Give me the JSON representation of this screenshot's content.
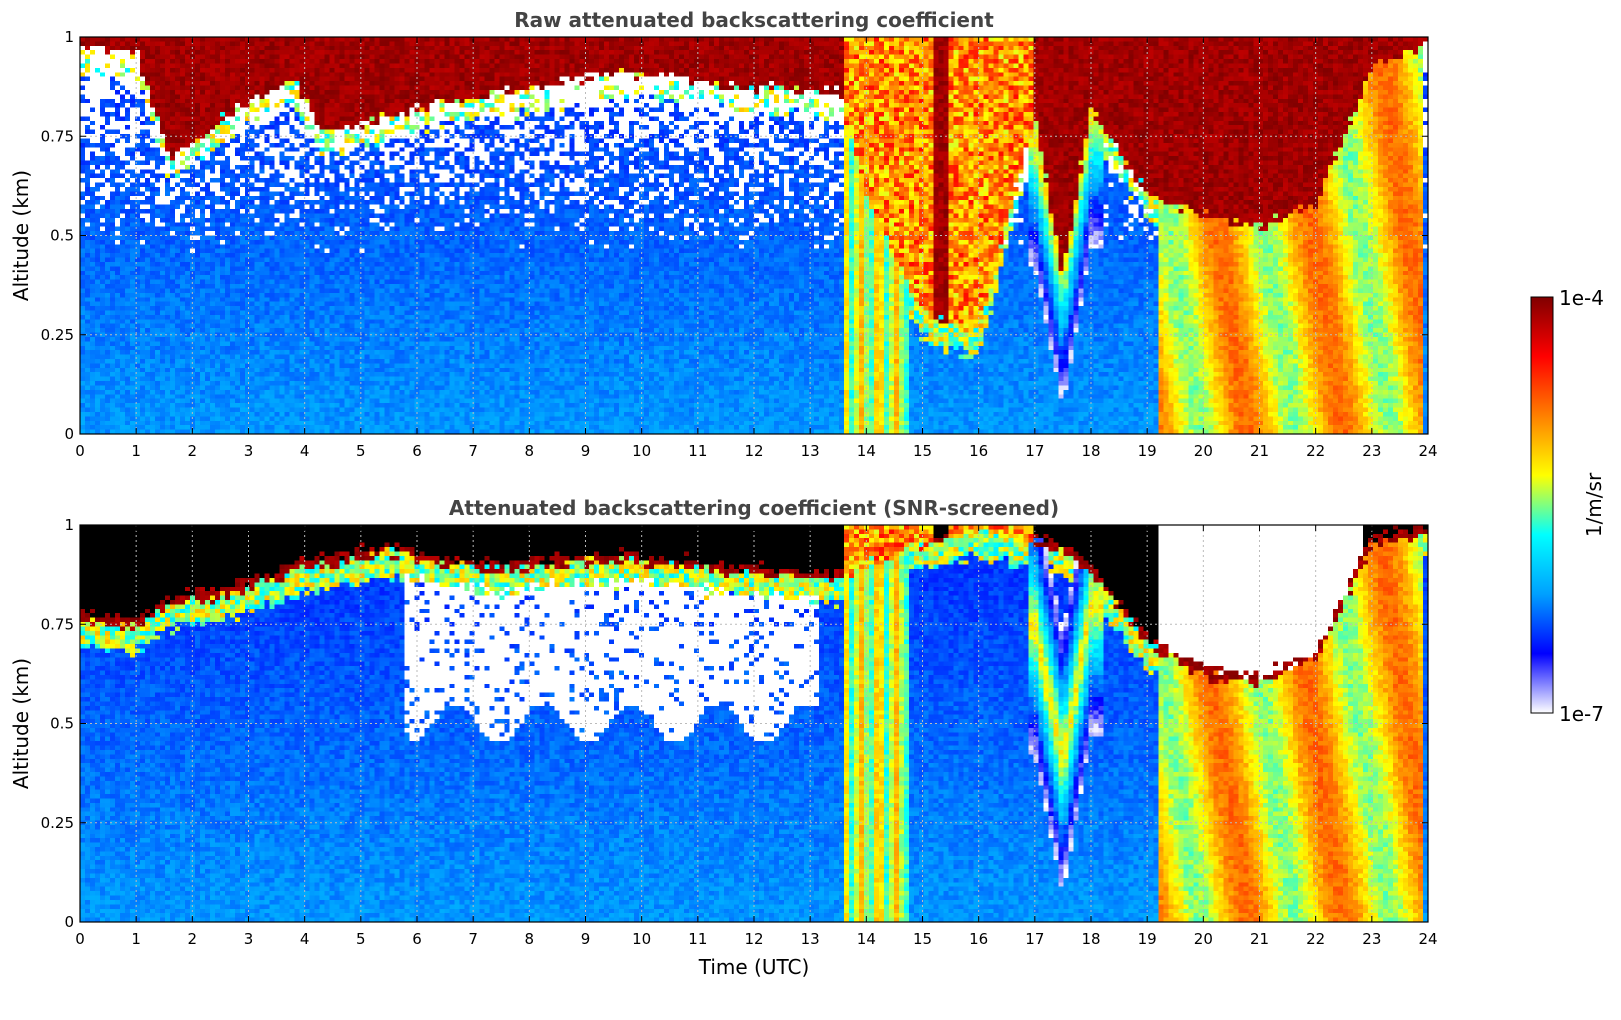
{
  "chart_data": [
    {
      "type": "heatmap",
      "title": "Raw attenuated backscattering coefficient",
      "xlabel": "",
      "ylabel": "Altitude (km)",
      "xlim": [
        0,
        24
      ],
      "ylim": [
        0,
        1
      ],
      "xticks": [
        "0",
        "1",
        "2",
        "3",
        "4",
        "5",
        "6",
        "7",
        "8",
        "9",
        "10",
        "11",
        "12",
        "13",
        "14",
        "15",
        "16",
        "17",
        "18",
        "19",
        "20",
        "21",
        "22",
        "23",
        "24"
      ],
      "yticks": [
        "0",
        "0.25",
        "0.5",
        "0.75",
        "1"
      ],
      "grid": true,
      "screened": false,
      "cloud_top_km": [
        [
          0.0,
          0.97
        ],
        [
          1.0,
          0.96
        ],
        [
          1.6,
          0.7
        ],
        [
          2.4,
          0.78
        ],
        [
          3.0,
          0.84
        ],
        [
          3.8,
          0.9
        ],
        [
          4.3,
          0.76
        ],
        [
          5.5,
          0.8
        ],
        [
          6.5,
          0.84
        ],
        [
          7.5,
          0.86
        ],
        [
          8.5,
          0.88
        ],
        [
          9.5,
          0.91
        ],
        [
          10.5,
          0.9
        ],
        [
          11.5,
          0.88
        ],
        [
          12.5,
          0.87
        ],
        [
          13.5,
          0.86
        ],
        [
          14.0,
          0.6
        ],
        [
          15.0,
          0.3
        ],
        [
          16.0,
          0.25
        ],
        [
          17.0,
          0.8
        ],
        [
          17.5,
          0.4
        ],
        [
          18.0,
          0.82
        ],
        [
          19.0,
          0.6
        ],
        [
          20.0,
          0.55
        ],
        [
          21.0,
          0.52
        ],
        [
          22.0,
          0.58
        ],
        [
          23.0,
          0.92
        ],
        [
          24.0,
          0.98
        ]
      ]
    },
    {
      "type": "heatmap",
      "title": "Attenuated backscattering coefficient (SNR-screened)",
      "xlabel": "Time (UTC)",
      "ylabel": "Altitude (km)",
      "xlim": [
        0,
        24
      ],
      "ylim": [
        0,
        1
      ],
      "xticks": [
        "0",
        "1",
        "2",
        "3",
        "4",
        "5",
        "6",
        "7",
        "8",
        "9",
        "10",
        "11",
        "12",
        "13",
        "14",
        "15",
        "16",
        "17",
        "18",
        "19",
        "20",
        "21",
        "22",
        "23",
        "24"
      ],
      "yticks": [
        "0",
        "0.25",
        "0.5",
        "0.75",
        "1"
      ],
      "grid": true,
      "screened": true,
      "cloud_top_km": [
        [
          0.0,
          0.76
        ],
        [
          1.0,
          0.74
        ],
        [
          1.6,
          0.8
        ],
        [
          2.4,
          0.82
        ],
        [
          3.0,
          0.84
        ],
        [
          3.8,
          0.88
        ],
        [
          4.3,
          0.9
        ],
        [
          5.5,
          0.93
        ],
        [
          6.5,
          0.9
        ],
        [
          7.5,
          0.88
        ],
        [
          8.5,
          0.9
        ],
        [
          9.5,
          0.91
        ],
        [
          10.5,
          0.9
        ],
        [
          11.5,
          0.88
        ],
        [
          12.5,
          0.87
        ],
        [
          13.5,
          0.86
        ],
        [
          14.0,
          0.9
        ],
        [
          15.0,
          0.95
        ],
        [
          16.0,
          0.98
        ],
        [
          17.0,
          0.96
        ],
        [
          17.5,
          0.93
        ],
        [
          18.0,
          0.88
        ],
        [
          19.0,
          0.7
        ],
        [
          20.0,
          0.62
        ],
        [
          21.0,
          0.6
        ],
        [
          22.0,
          0.66
        ],
        [
          23.0,
          0.95
        ],
        [
          24.0,
          0.98
        ]
      ]
    }
  ],
  "colorbar": {
    "label": "1/m/sr",
    "min_label": "1e-7",
    "max_label": "1e-4",
    "colormap": [
      "#ffffff",
      "#0000ff",
      "#00a0ff",
      "#00ffff",
      "#ffff00",
      "#ff8000",
      "#ff0000",
      "#800000"
    ]
  }
}
